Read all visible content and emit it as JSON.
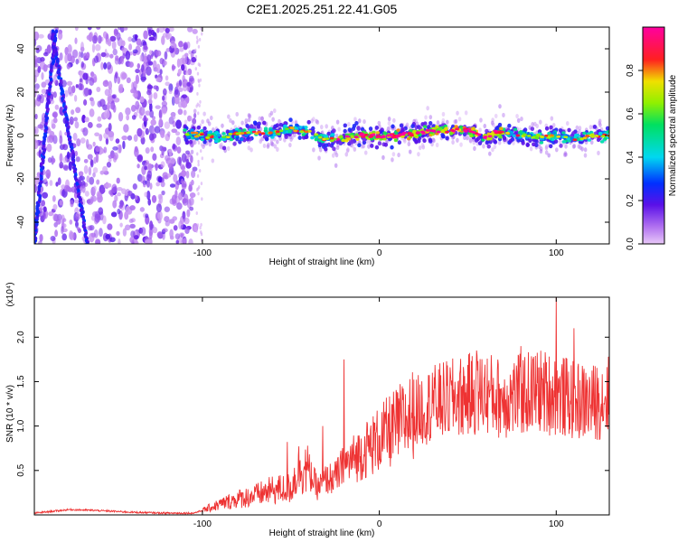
{
  "figure": {
    "title": "C2E1.2025.251.22.41.G05"
  },
  "chart_data": [
    {
      "type": "heatmap",
      "title": "C2E1.2025.251.22.41.G05",
      "xlabel": "Height of straight line (km)",
      "ylabel": "Frequency (Hz)",
      "xlim": [
        -195,
        130
      ],
      "ylim": [
        -50,
        50
      ],
      "xticks": [
        -100,
        0,
        100
      ],
      "xtick_labels": [
        "-100",
        "0",
        "100"
      ],
      "yticks": [
        -40,
        -20,
        0,
        20,
        40
      ],
      "ytick_labels": [
        "-40",
        "-20",
        "0",
        "20",
        "40"
      ],
      "colorbar": {
        "label": "Normalized spectral amplitude",
        "range": [
          0,
          1
        ],
        "ticks": [
          0.0,
          0.2,
          0.4,
          0.6,
          0.8
        ],
        "tick_labels": [
          "0.0",
          "0.2",
          "0.4",
          "0.6",
          "0.8"
        ],
        "colormap": "rainbow (violet-blue-cyan-green-yellow-red-magenta)"
      },
      "features": {
        "noise_region_x": [
          -195,
          -100
        ],
        "streak_1": {
          "x": [
            -195,
            -183
          ],
          "y": [
            -50,
            48
          ]
        },
        "streak_2": {
          "x": [
            -185,
            -165
          ],
          "y": [
            48,
            -50
          ]
        },
        "signal_band": {
          "x": [
            -110,
            -90,
            -70,
            -60,
            -50,
            -40,
            -30,
            -20,
            -10,
            0,
            10,
            20,
            30,
            40,
            50,
            60,
            70,
            80,
            90,
            100,
            110,
            120,
            130
          ],
          "y": [
            1,
            -1,
            2,
            1,
            3,
            2,
            -2,
            -1,
            0,
            0,
            0,
            1,
            2,
            2,
            3,
            -1,
            2,
            0,
            -1,
            0,
            -2,
            0,
            0
          ]
        }
      }
    },
    {
      "type": "line",
      "xlabel": "Height of straight line (km)",
      "ylabel": "SNR (10 * v/v)",
      "scale_label": "(x10⁴)",
      "xlim": [
        -195,
        130
      ],
      "ylim": [
        0,
        2.45
      ],
      "xticks": [
        -100,
        0,
        100
      ],
      "xtick_labels": [
        "-100",
        "0",
        "100"
      ],
      "yticks": [
        0.5,
        1.0,
        1.5,
        2.0
      ],
      "ytick_labels": [
        "0.5",
        "1.0",
        "1.5",
        "2.0"
      ],
      "color": "#ee3333",
      "series": [
        {
          "name": "SNR",
          "envelope": {
            "x": [
              -195,
              -175,
              -160,
              -140,
              -120,
              -105,
              -100,
              -90,
              -80,
              -70,
              -60,
              -50,
              -45,
              -40,
              -35,
              -30,
              -25,
              -20,
              -10,
              0,
              10,
              20,
              30,
              40,
              50,
              60,
              70,
              80,
              90,
              100,
              110,
              120,
              130
            ],
            "y": [
              0.02,
              0.06,
              0.05,
              0.03,
              0.02,
              0.02,
              0.05,
              0.12,
              0.18,
              0.22,
              0.28,
              0.3,
              0.55,
              0.5,
              0.3,
              0.4,
              0.42,
              0.55,
              0.7,
              0.85,
              1.0,
              1.15,
              1.25,
              1.3,
              1.35,
              1.38,
              1.3,
              1.35,
              1.4,
              1.35,
              1.3,
              1.25,
              1.35
            ]
          },
          "spikes": [
            {
              "x": -52,
              "y": 0.82
            },
            {
              "x": -32,
              "y": 1.0
            },
            {
              "x": -20,
              "y": 1.75
            },
            {
              "x": 30,
              "y": 1.6
            },
            {
              "x": 55,
              "y": 1.85
            },
            {
              "x": 80,
              "y": 1.9
            },
            {
              "x": 100,
              "y": 2.45
            },
            {
              "x": 110,
              "y": 2.1
            }
          ]
        }
      ]
    }
  ]
}
